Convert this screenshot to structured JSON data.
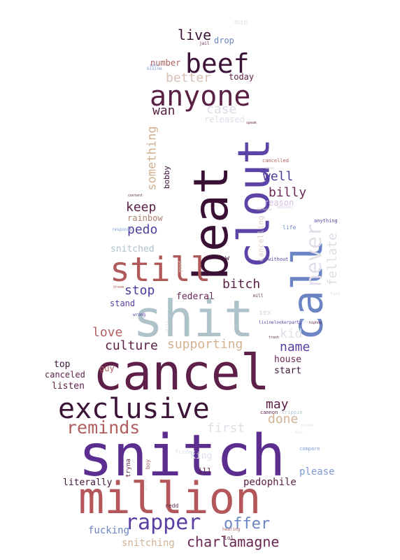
{
  "words": [
    {
      "text": "snitch",
      "color": "#5b2d8f"
    },
    {
      "text": "million",
      "color": "#b4575b"
    },
    {
      "text": "cancel",
      "color": "#5e1f49"
    },
    {
      "text": "exclusive",
      "color": "#3c1438"
    },
    {
      "text": "shit",
      "color": "#aec2c9"
    },
    {
      "text": "beat",
      "color": "#3a1035"
    },
    {
      "text": "clout",
      "color": "#5c44a6"
    },
    {
      "text": "call",
      "color": "#6b84c4"
    },
    {
      "text": "still",
      "color": "#b05959"
    },
    {
      "text": "anyone",
      "color": "#5a1f44"
    },
    {
      "text": "beef",
      "color": "#3c1438"
    },
    {
      "text": "never",
      "color": "#e2dde8"
    },
    {
      "text": "rapper",
      "color": "#5a3fa2"
    },
    {
      "text": "reminds",
      "color": "#b05f5f"
    },
    {
      "text": "charlamagne",
      "color": "#6a2855"
    },
    {
      "text": "offer",
      "color": "#6b84c4"
    },
    {
      "text": "live",
      "color": "#3c1438"
    },
    {
      "text": "better",
      "color": "#d9bfb4"
    },
    {
      "text": "wan",
      "color": "#5a1f44"
    },
    {
      "text": "case",
      "color": "#dfdbe6"
    },
    {
      "text": "something",
      "color": "#d2b293"
    },
    {
      "text": "well",
      "color": "#4f3b9b"
    },
    {
      "text": "billy",
      "color": "#6a2855"
    },
    {
      "text": "keep",
      "color": "#5a1f44"
    },
    {
      "text": "pedo",
      "color": "#4f3b9b"
    },
    {
      "text": "fellate",
      "color": "#e0dde6"
    },
    {
      "text": "bitch",
      "color": "#5a1f44"
    },
    {
      "text": "stop",
      "color": "#4f3b9b"
    },
    {
      "text": "love",
      "color": "#b06060"
    },
    {
      "text": "culture",
      "color": "#5a1f44"
    },
    {
      "text": "supporting",
      "color": "#d2b293"
    },
    {
      "text": "kid",
      "color": "#dfe0e8"
    },
    {
      "text": "name",
      "color": "#5a3fa2"
    },
    {
      "text": "may",
      "color": "#5a1f44"
    },
    {
      "text": "done",
      "color": "#d2b293"
    },
    {
      "text": "first",
      "color": "#dfe0e8"
    },
    {
      "text": "federal",
      "color": "#6a2855"
    },
    {
      "text": "snitching",
      "color": "#d2b293"
    },
    {
      "text": "fucking",
      "color": "#6b84c4"
    },
    {
      "text": "pedophile",
      "color": "#5a1f44"
    },
    {
      "text": "please",
      "color": "#7b9bd0"
    },
    {
      "text": "literally",
      "color": "#3c1438"
    },
    {
      "text": "listen",
      "color": "#5a1f44"
    },
    {
      "text": "canceled",
      "color": "#5a1f44"
    },
    {
      "text": "top",
      "color": "#3c1438"
    },
    {
      "text": "guy",
      "color": "#b06060"
    },
    {
      "text": "house",
      "color": "#6a2855"
    },
    {
      "text": "start",
      "color": "#3c1438"
    },
    {
      "text": "snitched",
      "color": "#aec2c9"
    },
    {
      "text": "stand",
      "color": "#5a3fa2"
    },
    {
      "text": "rainbow",
      "color": "#b08070"
    },
    {
      "text": "reason",
      "color": "#d2c0e0"
    },
    {
      "text": "cancelling",
      "color": "#dfd0c8"
    },
    {
      "text": "bobby",
      "color": "#3c1438"
    },
    {
      "text": "released",
      "color": "#dfe0e8"
    },
    {
      "text": "today",
      "color": "#5a1f44"
    },
    {
      "text": "number",
      "color": "#b06060"
    },
    {
      "text": "drop",
      "color": "#6b84c4"
    },
    {
      "text": "man",
      "color": "#e3e3e3"
    },
    {
      "text": "jail",
      "color": "#5a1f44"
    },
    {
      "text": "king",
      "color": "#dfe0e8"
    },
    {
      "text": "ill",
      "color": "#5a1f44"
    },
    {
      "text": "redd",
      "color": "#5a1f44"
    },
    {
      "text": "lol",
      "color": "#5a1f44"
    },
    {
      "text": "boy",
      "color": "#b06060"
    },
    {
      "text": "tryna",
      "color": "#5a1f44"
    },
    {
      "text": "friday",
      "color": "#dfe0e8"
    },
    {
      "text": "cannon",
      "color": "#5a1f44"
    },
    {
      "text": "trippie",
      "color": "#aec2c9"
    },
    {
      "text": "compare",
      "color": "#7b9bd0"
    },
    {
      "text": "sex",
      "color": "#dfd0c8"
    },
    {
      "text": "w",
      "color": "#3c1438"
    },
    {
      "text": "without",
      "color": "#5a3fa2"
    },
    {
      "text": "life",
      "color": "#6b84c4"
    },
    {
      "text": "anything",
      "color": "#5a3fa2"
    },
    {
      "text": "cancelled",
      "color": "#b06060"
    },
    {
      "text": "responds",
      "color": "#7b9bd0"
    },
    {
      "text": "ixine",
      "color": "#dfe0e8"
    },
    {
      "text": "6ixine",
      "color": "#7b9bd0"
    },
    {
      "text": "good",
      "color": "#dfd0c8"
    },
    {
      "text": "wrong",
      "color": "#5a3fa2"
    },
    {
      "text": "still",
      "color": "#dfe0e8"
    },
    {
      "text": "trash",
      "color": "#5a1f44"
    },
    {
      "text": "hiphop",
      "color": "#5a1f44"
    },
    {
      "text": "mill",
      "color": "#5a1f44"
    },
    {
      "text": "fuck",
      "color": "#dfe0e8"
    },
    {
      "text": "dead",
      "color": "#dfd0c8"
    },
    {
      "text": "talking",
      "color": "#dfd0c8"
    },
    {
      "text": "hearing",
      "color": "#b06060"
    },
    {
      "text": "worth",
      "color": "#dfe0e8"
    },
    {
      "text": "lixinelookerparty",
      "color": "#5a3fa2"
    },
    {
      "text": "inside",
      "color": "#dfe0e8"
    },
    {
      "text": "dick",
      "color": "#dfe0e8"
    },
    {
      "text": "content",
      "color": "#5a1f44"
    },
    {
      "text": "explain",
      "color": "#d2c0e0"
    },
    {
      "text": "dream",
      "color": "#b06060"
    },
    {
      "text": "ight",
      "color": "#7b9bd0"
    },
    {
      "text": "speak",
      "color": "#6a2855"
    }
  ]
}
